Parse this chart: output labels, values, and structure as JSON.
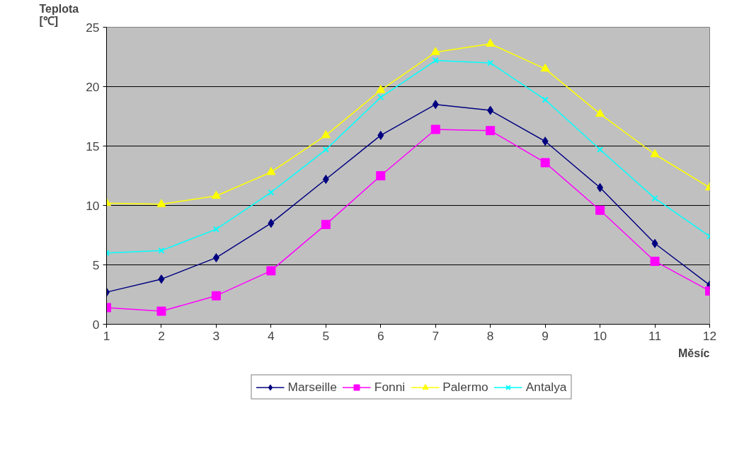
{
  "chart_data": {
    "type": "line",
    "xlabel": "Měsíc",
    "ylabel": "Teplota [℃]",
    "x": [
      1,
      2,
      3,
      4,
      5,
      6,
      7,
      8,
      9,
      10,
      11,
      12
    ],
    "series": [
      {
        "name": "Marseille",
        "color": "#000080",
        "marker": "diamond",
        "values": [
          2.7,
          3.8,
          5.6,
          8.5,
          12.2,
          15.9,
          18.5,
          18.0,
          15.4,
          11.5,
          6.8,
          3.3
        ]
      },
      {
        "name": "Fonni",
        "color": "#ff00ff",
        "marker": "square",
        "values": [
          1.4,
          1.1,
          2.4,
          4.5,
          8.4,
          12.5,
          16.4,
          16.3,
          13.6,
          9.6,
          5.3,
          2.8
        ]
      },
      {
        "name": "Palermo",
        "color": "#ffff00",
        "marker": "triangle",
        "values": [
          10.2,
          10.1,
          10.8,
          12.8,
          15.9,
          19.7,
          22.9,
          23.6,
          21.5,
          17.7,
          14.3,
          11.5
        ]
      },
      {
        "name": "Antalya",
        "color": "#00ffff",
        "marker": "cross",
        "values": [
          6.0,
          6.2,
          8.0,
          11.1,
          14.7,
          19.1,
          22.2,
          22.0,
          18.9,
          14.7,
          10.6,
          7.4
        ]
      }
    ],
    "xlim": [
      1,
      12
    ],
    "ylim": [
      0,
      25
    ],
    "xticks": [
      1,
      2,
      3,
      4,
      5,
      6,
      7,
      8,
      9,
      10,
      11,
      12
    ],
    "yticks": [
      0,
      5,
      10,
      15,
      20,
      25
    ],
    "grid": "y",
    "legend": "bottom",
    "line_style": "solid"
  }
}
